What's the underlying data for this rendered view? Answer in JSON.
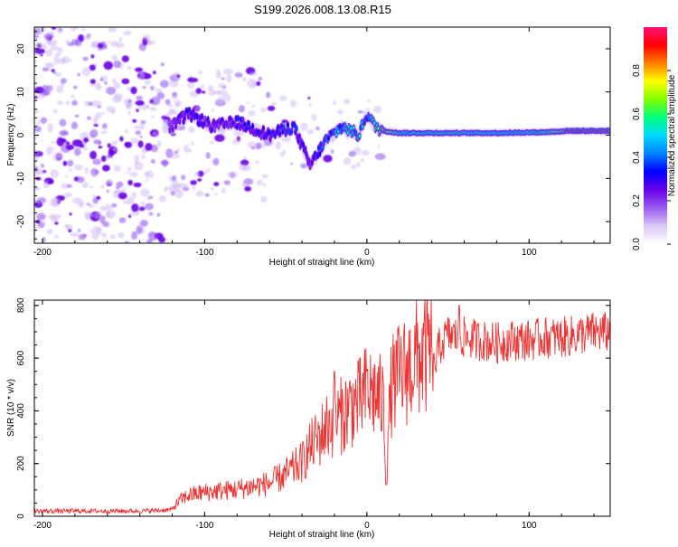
{
  "figure": {
    "title": "S199.2026.008.13.08.R15"
  },
  "chart_data": [
    {
      "type": "heatmap",
      "name": "spectrogram",
      "title": "",
      "xlabel": "Height of straight line (km)",
      "ylabel": "Frequency (Hz)",
      "xlim": [
        -205,
        150
      ],
      "ylim": [
        -25,
        25
      ],
      "xticks": [
        -200,
        -100,
        0,
        100
      ],
      "yticks": [
        -20,
        -10,
        0,
        10,
        20
      ],
      "xtick_labels": [
        "-200",
        "-100",
        "0",
        "100"
      ],
      "ytick_labels": [
        "-20",
        "-10",
        "0",
        "10",
        "20"
      ],
      "grid": false,
      "colorbar": {
        "label": "Normalized spectral amplitude",
        "range": [
          0,
          1
        ],
        "ticks": [
          0.0,
          0.2,
          0.4,
          0.6,
          0.8
        ],
        "tick_labels": [
          "0.0",
          "0.2",
          "0.4",
          "0.6",
          "0.8"
        ],
        "colormap": [
          "#ffffff",
          "#dcc8f5",
          "#9a5cf0",
          "#6a00e8",
          "#0000ff",
          "#0080ff",
          "#00d8ff",
          "#00ff80",
          "#80ff00",
          "#ffff00",
          "#ff8000",
          "#ff0000",
          "#ff1077"
        ]
      },
      "signal_track": {
        "description_points": [
          {
            "height_km": -120,
            "freq_hz": 2.0,
            "amplitude": 0.25
          },
          {
            "height_km": -110,
            "freq_hz": 5.0,
            "amplitude": 0.3
          },
          {
            "height_km": -95,
            "freq_hz": 2.0,
            "amplitude": 0.25
          },
          {
            "height_km": -80,
            "freq_hz": 3.0,
            "amplitude": 0.3
          },
          {
            "height_km": -60,
            "freq_hz": 0.0,
            "amplitude": 0.3
          },
          {
            "height_km": -45,
            "freq_hz": 2.0,
            "amplitude": 0.35
          },
          {
            "height_km": -35,
            "freq_hz": -7.0,
            "amplitude": 0.25
          },
          {
            "height_km": -25,
            "freq_hz": -1.0,
            "amplitude": 0.4
          },
          {
            "height_km": -15,
            "freq_hz": 2.0,
            "amplitude": 0.5
          },
          {
            "height_km": -5,
            "freq_hz": 0.0,
            "amplitude": 0.55
          },
          {
            "height_km": 0,
            "freq_hz": 5.0,
            "amplitude": 0.45
          },
          {
            "height_km": 5,
            "freq_hz": 2.0,
            "amplitude": 0.6
          },
          {
            "height_km": 10,
            "freq_hz": 1.0,
            "amplitude": 0.95
          },
          {
            "height_km": 20,
            "freq_hz": 0.5,
            "amplitude": 0.55
          },
          {
            "height_km": 50,
            "freq_hz": 0.5,
            "amplitude": 0.6
          },
          {
            "height_km": 80,
            "freq_hz": 0.5,
            "amplitude": 0.55
          },
          {
            "height_km": 110,
            "freq_hz": 0.7,
            "amplitude": 0.6
          },
          {
            "height_km": 125,
            "freq_hz": 1.0,
            "amplitude": 0.95
          },
          {
            "height_km": 150,
            "freq_hz": 1.0,
            "amplitude": 0.95
          }
        ]
      }
    },
    {
      "type": "line",
      "name": "snr",
      "title": "",
      "xlabel": "Height of straight line (km)",
      "ylabel": "SNR (10 * v/v)",
      "xlim": [
        -205,
        150
      ],
      "ylim": [
        0,
        820
      ],
      "xticks": [
        -200,
        -100,
        0,
        100
      ],
      "yticks": [
        0,
        200,
        400,
        600,
        800
      ],
      "xtick_labels": [
        "-200",
        "-100",
        "0",
        "100"
      ],
      "ytick_labels": [
        "0",
        "200",
        "400",
        "600",
        "800"
      ],
      "grid": false,
      "series": [
        {
          "name": "SNR",
          "color": "#ee3333",
          "x": [
            -205,
            -180,
            -160,
            -140,
            -130,
            -120,
            -115,
            -110,
            -100,
            -90,
            -80,
            -70,
            -60,
            -50,
            -40,
            -35,
            -30,
            -25,
            -20,
            -15,
            -10,
            -5,
            0,
            5,
            10,
            12,
            15,
            20,
            25,
            30,
            35,
            40,
            45,
            50,
            60,
            70,
            80,
            90,
            100,
            110,
            120,
            130,
            140,
            150
          ],
          "values": [
            20,
            20,
            20,
            20,
            22,
            25,
            55,
            70,
            80,
            85,
            90,
            100,
            110,
            140,
            180,
            230,
            260,
            300,
            320,
            340,
            370,
            380,
            420,
            410,
            380,
            180,
            430,
            470,
            490,
            520,
            540,
            560,
            680,
            720,
            710,
            700,
            690,
            700,
            700,
            710,
            710,
            720,
            730,
            730
          ],
          "spikes": [
            {
              "x": -20,
              "y": 550
            },
            {
              "x": 0,
              "y": 550
            },
            {
              "x": 12,
              "y": 120
            },
            {
              "x": 57,
              "y": 800
            }
          ]
        }
      ]
    }
  ]
}
